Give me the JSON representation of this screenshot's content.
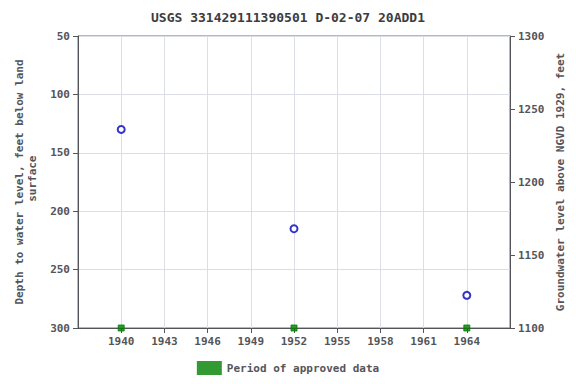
{
  "chart_data": {
    "type": "scatter",
    "title": "USGS 331429111390501 D-02-07 20ADD1",
    "series": [
      {
        "x": [
          1940,
          1952,
          1964
        ],
        "values": [
          130,
          215,
          272
        ],
        "color": "#0000bb",
        "marker": "open_circle"
      },
      {
        "name": "Period of approved data",
        "x": [
          1940,
          1952,
          1964
        ],
        "values": [
          300,
          300,
          300
        ],
        "color": "#008000",
        "marker": "square"
      }
    ],
    "xlim": [
      1937,
      1967
    ],
    "xticks": [
      1940,
      1943,
      1946,
      1949,
      1952,
      1955,
      1958,
      1961,
      1964
    ],
    "ylim": [
      300,
      50
    ],
    "yticks": [
      50,
      100,
      150,
      200,
      250,
      300
    ],
    "y2lim": [
      1100,
      1300
    ],
    "y2ticks": [
      1100,
      1150,
      1200,
      1250,
      1300
    ],
    "ylabel": "Depth to water level, feet below land\n surface",
    "y2label": "Groundwater level above NGVD 1929, feet",
    "grid": true,
    "legend": "bottom"
  }
}
